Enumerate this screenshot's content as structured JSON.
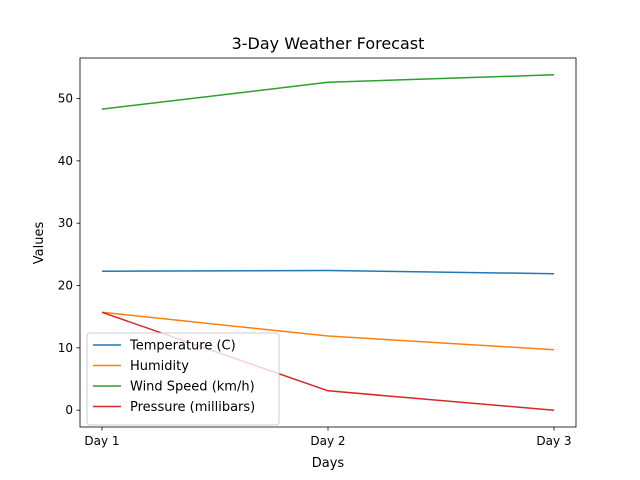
{
  "chart_data": {
    "type": "line",
    "title": "3-Day Weather Forecast",
    "xlabel": "Days",
    "ylabel": "Values",
    "categories": [
      "Day 1",
      "Day 2",
      "Day 3"
    ],
    "ylim": [
      -2.7,
      56.5
    ],
    "yticks": [
      0,
      10,
      20,
      30,
      40,
      50
    ],
    "grid": false,
    "legend_position": "lower left",
    "series": [
      {
        "name": "Temperature (C)",
        "color": "#1f77b4",
        "values": [
          22.3,
          22.4,
          21.9
        ]
      },
      {
        "name": "Humidity",
        "color": "#ff7f0e",
        "values": [
          15.7,
          11.9,
          9.7
        ]
      },
      {
        "name": "Wind Speed (km/h)",
        "color": "#2ca02c",
        "values": [
          48.3,
          52.6,
          53.8
        ]
      },
      {
        "name": "Pressure (millibars)",
        "color": "#d62728",
        "values": [
          15.7,
          3.1,
          0.0
        ]
      }
    ]
  }
}
